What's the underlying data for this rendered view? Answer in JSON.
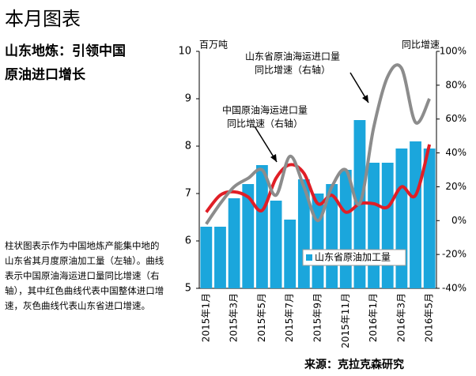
{
  "header": {
    "title": "本月图表",
    "subtitle": [
      "山东地炼：引领中国",
      "原油进口增长"
    ],
    "description": "柱状图表示作为中国地炼产能集中地的山东省其月度原油加工量（左轴）。曲线表示中国原油海运进口量同比增速（右轴），其中红色曲线代表中国整体进口增速，灰色曲线代表山东省进口增速。"
  },
  "chart_data": {
    "type": "bar",
    "ylabel": "百万吨",
    "y2label": "同比增速",
    "source": "来源：克拉克森研究",
    "categories": [
      "2015年1月",
      null,
      "2015年3月",
      null,
      "2015年5月",
      null,
      "2015年7月",
      null,
      "2015年9月",
      null,
      "2015年11月",
      null,
      "2016年1月",
      null,
      "2016年3月",
      null,
      "2016年5月"
    ],
    "ylim": [
      5,
      10
    ],
    "yticks": [
      5,
      6,
      7,
      8,
      9,
      10
    ],
    "y2lim": [
      -40,
      100
    ],
    "y2ticks": [
      {
        "value": -40,
        "label": "-40%"
      },
      {
        "value": -20,
        "label": "-20%"
      },
      {
        "value": 0,
        "label": "0%"
      },
      {
        "value": 20,
        "label": "20%"
      },
      {
        "value": 40,
        "label": "40%"
      },
      {
        "value": 60,
        "label": "60%"
      },
      {
        "value": 80,
        "label": "80%"
      },
      {
        "value": 100,
        "label": "100%"
      }
    ],
    "series": [
      {
        "name": "山东省原油加工量",
        "type": "bar",
        "color": "#1ba6dc",
        "values": [
          6.3,
          6.3,
          6.9,
          7.2,
          7.6,
          6.85,
          6.45,
          7.3,
          7.0,
          7.2,
          7.5,
          8.55,
          7.65,
          7.65,
          7.95,
          8.1,
          7.95
        ]
      },
      {
        "type": "line",
        "axis": "y2",
        "color": "#e01e26",
        "label": [
          "中国原油海运进口量",
          "同比增速（右轴）"
        ],
        "values": [
          5,
          15,
          17,
          14,
          6,
          25,
          33,
          28,
          10,
          15,
          5,
          10,
          10,
          8,
          20,
          15,
          45
        ]
      },
      {
        "type": "line",
        "axis": "y2",
        "color": "#8c8c8c",
        "label": [
          "山东省原油海运进口量",
          "同比增速（右轴）"
        ],
        "values": [
          -2,
          10,
          20,
          25,
          30,
          15,
          38,
          20,
          0,
          20,
          30,
          10,
          55,
          85,
          90,
          58,
          72
        ]
      }
    ]
  }
}
